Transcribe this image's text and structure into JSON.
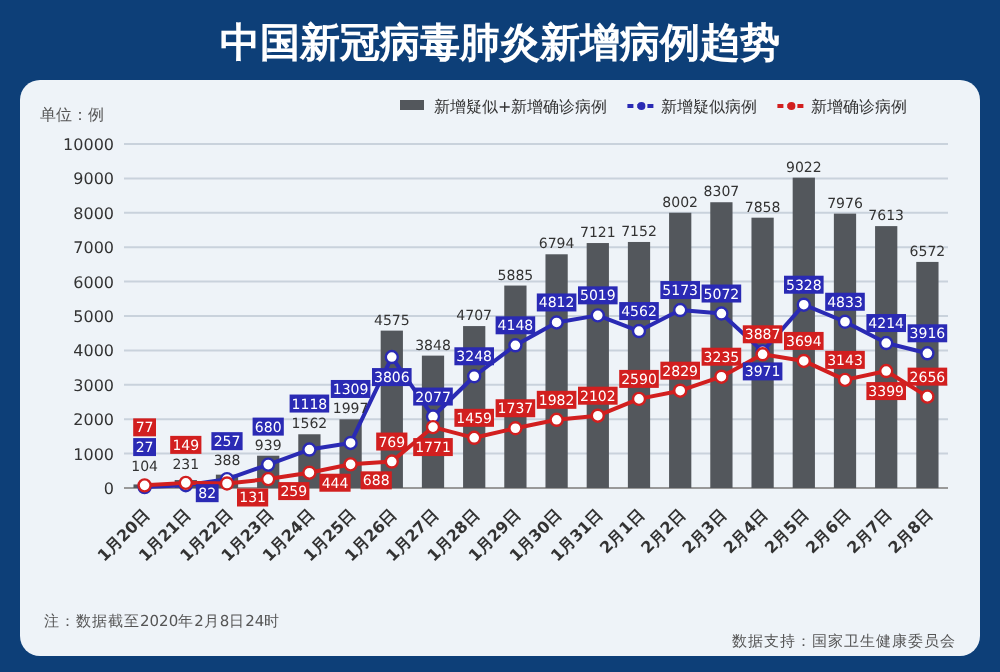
{
  "chart_data": {
    "type": "bar",
    "title": "中国新冠病毒肺炎新增病例趋势",
    "ylabel": "单位：例",
    "categories": [
      "1月20日",
      "1月21日",
      "1月22日",
      "1月23日",
      "1月24日",
      "1月25日",
      "1月26日",
      "1月27日",
      "1月28日",
      "1月29日",
      "1月30日",
      "1月31日",
      "2月1日",
      "2月2日",
      "2月3日",
      "2月4日",
      "2月5日",
      "2月6日",
      "2月7日",
      "2月8日"
    ],
    "series": [
      {
        "name": "新增疑似+新增确诊病例",
        "color": "#53575c",
        "values": [
          104,
          231,
          388,
          939,
          1562,
          1997,
          4575,
          3848,
          4707,
          5885,
          6794,
          7121,
          7152,
          8002,
          8307,
          7858,
          9022,
          7976,
          7613,
          6572
        ]
      },
      {
        "name": "新增疑似病例",
        "type": "line",
        "color": "#2a2ab4",
        "values": [
          27,
          82,
          257,
          680,
          1118,
          1309,
          3806,
          2077,
          3248,
          4148,
          4812,
          5019,
          4562,
          5173,
          5072,
          3971,
          5328,
          4833,
          4214,
          3916
        ]
      },
      {
        "name": "新增确诊病例",
        "type": "line",
        "color": "#d21f1f",
        "values": [
          77,
          149,
          131,
          259,
          444,
          688,
          769,
          1771,
          1459,
          1737,
          1982,
          2102,
          2590,
          2829,
          3235,
          3887,
          3694,
          3143,
          3399,
          2656
        ]
      }
    ],
    "ylim": [
      0,
      10000
    ],
    "yticks": [
      0,
      1000,
      2000,
      3000,
      4000,
      5000,
      6000,
      7000,
      8000,
      9000,
      10000
    ],
    "grid": "y",
    "legend": "top",
    "marker": "circle",
    "data_labels": true,
    "annotations": [
      "注：数据截至2020年2月8日24时",
      "数据支持：国家卫生健康委员会"
    ]
  }
}
